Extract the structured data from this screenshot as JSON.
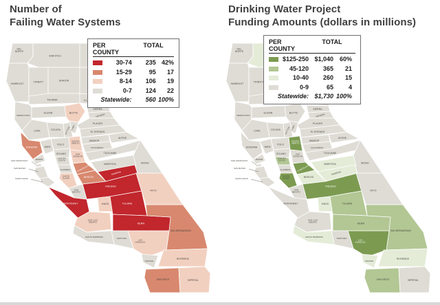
{
  "titles": {
    "left": "Number of\nFailing Water Systems",
    "right": "Drinking Water Project\nFunding Amounts (dollars in millions)"
  },
  "legends": {
    "left": {
      "header_per_county": "PER COUNTY",
      "header_total": "TOTAL",
      "rows": [
        {
          "range": "30-74",
          "total": "235",
          "pct": "42%",
          "color": "#c1272d"
        },
        {
          "range": "15-29",
          "total": "95",
          "pct": "17",
          "color": "#d8886e"
        },
        {
          "range": "8-14",
          "total": "106",
          "pct": "19",
          "color": "#f2d0c0"
        },
        {
          "range": "0-7",
          "total": "124",
          "pct": "22",
          "color": "#dedcd5"
        }
      ],
      "statewide_label": "Statewide:",
      "statewide_total": "560",
      "statewide_pct": "100%"
    },
    "right": {
      "header_per_county": "PER COUNTY",
      "header_total": "TOTAL",
      "rows": [
        {
          "range": "$125-250",
          "total": "$1,040",
          "pct": "60%",
          "color": "#7c9b51"
        },
        {
          "range": "45-120",
          "total": "365",
          "pct": "21",
          "color": "#b2c794"
        },
        {
          "range": "10-40",
          "total": "260",
          "pct": "15",
          "color": "#e4ecd8"
        },
        {
          "range": "0-9",
          "total": "65",
          "pct": "4",
          "color": "#dedcd5"
        }
      ],
      "statewide_label": "Statewide:",
      "statewide_total": "$1,730",
      "statewide_pct": "100%"
    }
  },
  "palettes": {
    "left": [
      "#dedcd5",
      "#f2d0c0",
      "#d8886e",
      "#c1272d"
    ],
    "right": [
      "#dedcd5",
      "#e4ecd8",
      "#b2c794",
      "#7c9b51"
    ]
  },
  "county_names": {
    "delnorte": "DEL|NORTE",
    "siskiyou": "SISKIYOU",
    "modoc": "MODOC",
    "humboldt": "HUMBOLDT",
    "trinity": "TRINITY",
    "shasta": "SHASTA",
    "lassen": "LASSEN",
    "tehama": "TEHAMA",
    "plumas": "PLUMAS",
    "mendocino": "MENDOCINO",
    "glenn": "GLENN",
    "butte": "BUTTE",
    "sierra": "SIERRA",
    "nevadaco": "NEVADA",
    "yuba": "YUBA",
    "sutter": "SUTTER",
    "placer": "PLACER",
    "eldorado": "EL DORADO",
    "lake": "LAKE",
    "colusa": "COLUSA",
    "yolo": "YOLO",
    "napa": "NAPA",
    "sonoma": "SONOMA",
    "marin": "MARIN",
    "solano": "SOLANO",
    "sacramento": "SACRA-|MENTO",
    "amador": "AMADOR",
    "alpine": "ALPINE",
    "calaveras": "CALAVERAS",
    "tuolumne": "TUOLUMNE",
    "mono": "MONO",
    "sanjoaquin": "SAN|JOAQUIN",
    "contracosta": "CONTRA|COSTA",
    "sf": "SAN FRANCISCO",
    "alameda": "ALAMEDA",
    "sanmateo": "SAN MATEO",
    "santaclara": "SANTA|CLARA",
    "santacruz": "SANTA CRUZ",
    "stanislaus": "STANISLAUS",
    "mariposa": "MARIPOSA",
    "merced": "MERCED",
    "madera": "MADERA",
    "fresno": "FRESNO",
    "inyo": "INYO",
    "sanbenito": "SAN|BENITO",
    "kings": "KINGS",
    "tulare": "TULARE",
    "monterey": "MONTEREY",
    "slo": "SAN LUIS|OBISPO",
    "kern": "KERN",
    "sanbernardino": "SAN BERNARDINO",
    "la": "LOS|ANGELES",
    "ventura": "VENTURA",
    "santabarbara": "SANTA BARBARA",
    "orange": "ORANGE",
    "riverside": "RIVERSIDE",
    "sandiego": "SAN DIEGO",
    "imperial": "IMPERIAL"
  },
  "map_left": {
    "cat3": [
      "madera",
      "fresno",
      "tulare",
      "kern",
      "monterey"
    ],
    "cat2": [
      "sonoma",
      "stanislaus",
      "merced",
      "sanbernardino",
      "sandiego"
    ],
    "cat1": [
      "butte",
      "sacramento",
      "sanjoaquin",
      "santaclara",
      "kings",
      "inyo",
      "slo",
      "la",
      "riverside",
      "imperial"
    ],
    "white_labels": [
      "madera",
      "fresno",
      "tulare",
      "kern",
      "monterey",
      "sonoma",
      "stanislaus",
      "merced"
    ]
  },
  "map_right": {
    "cat3": [
      "sacramento",
      "stanislaus",
      "santaclara",
      "fresno",
      "la"
    ],
    "cat2": [
      "contracosta",
      "tulare",
      "kern",
      "sanbernardino",
      "sandiego"
    ],
    "cat1": [
      "siskiyou",
      "mariposa",
      "merced",
      "madera",
      "kings",
      "santabarbara",
      "orange",
      "riverside"
    ],
    "white_labels": [
      "sacramento",
      "stanislaus",
      "fresno",
      "la"
    ]
  }
}
